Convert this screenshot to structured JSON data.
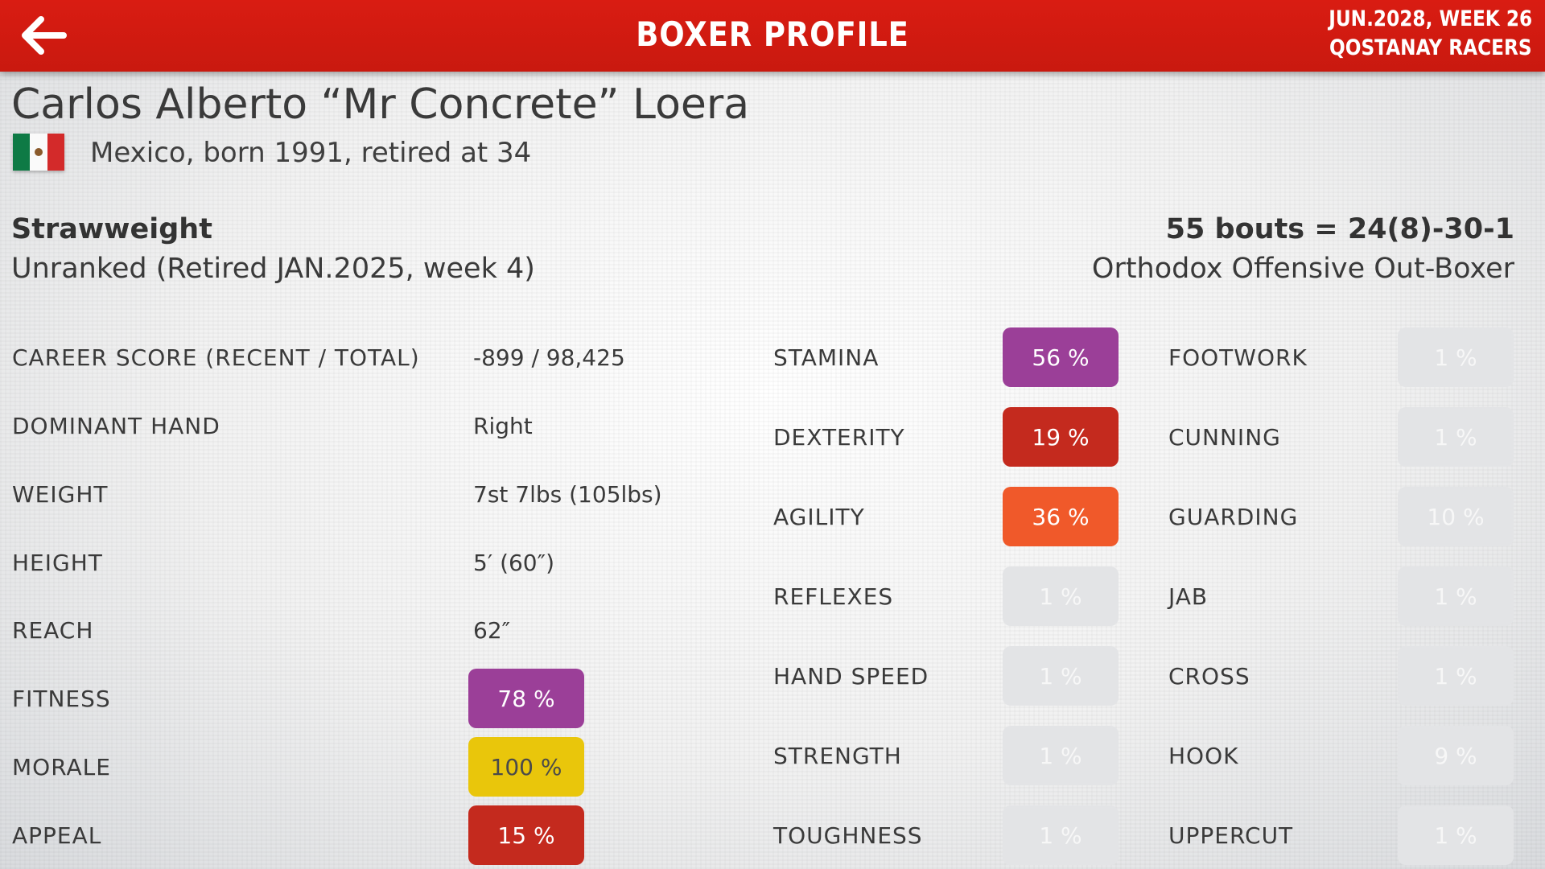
{
  "header": {
    "title": "BOXER PROFILE",
    "date": "JUN.2028, WEEK 26",
    "team": "QOSTANAY RACERS",
    "back_icon": "back-arrow-icon",
    "color": "#d91c12"
  },
  "boxer": {
    "name": "Carlos Alberto “Mr Concrete” Loera",
    "flag_icon": "mexico-flag-icon",
    "origin": "Mexico, born 1991, retired at 34",
    "weight_class": "Strawweight",
    "ranking": "Unranked (Retired JAN.2025, week 4)",
    "record": "55 bouts = 24(8)-30-1",
    "style": "Orthodox Offensive Out-Boxer"
  },
  "info": [
    {
      "label": "CAREER SCORE (RECENT / TOTAL)",
      "value": "-899 / 98,425"
    },
    {
      "label": "DOMINANT HAND",
      "value": "Right"
    },
    {
      "label": "WEIGHT",
      "value": "7st 7lbs (105lbs)"
    },
    {
      "label": "HEIGHT",
      "value": "5′ (60″)"
    },
    {
      "label": "REACH",
      "value": "62″"
    }
  ],
  "condition": [
    {
      "label": "FITNESS",
      "value": "78 %",
      "color": "#9b3f98"
    },
    {
      "label": "MORALE",
      "value": "100 %",
      "color": "#e9c60b"
    },
    {
      "label": "APPEAL",
      "value": "15 %",
      "color": "#c42a1e"
    }
  ],
  "physical": [
    {
      "label": "STAMINA",
      "value": "56 %",
      "color": "#9b3f98"
    },
    {
      "label": "DEXTERITY",
      "value": "19 %",
      "color": "#c42a1e"
    },
    {
      "label": "AGILITY",
      "value": "36 %",
      "color": "#f0592a"
    },
    {
      "label": "REFLEXES",
      "value": "1 %",
      "color": "#e3e4e6"
    },
    {
      "label": "HAND SPEED",
      "value": "1 %",
      "color": "#e3e4e6"
    },
    {
      "label": "STRENGTH",
      "value": "1 %",
      "color": "#e3e4e6"
    },
    {
      "label": "TOUGHNESS",
      "value": "1 %",
      "color": "#e3e4e6"
    }
  ],
  "skills": [
    {
      "label": "FOOTWORK",
      "value": "1 %",
      "color": "#e3e4e6"
    },
    {
      "label": "CUNNING",
      "value": "1 %",
      "color": "#e3e4e6"
    },
    {
      "label": "GUARDING",
      "value": "10 %",
      "color": "#e3e4e6"
    },
    {
      "label": "JAB",
      "value": "1 %",
      "color": "#e3e4e6"
    },
    {
      "label": "CROSS",
      "value": "1 %",
      "color": "#e3e4e6"
    },
    {
      "label": "HOOK",
      "value": "9 %",
      "color": "#e3e4e6"
    },
    {
      "label": "UPPERCUT",
      "value": "1 %",
      "color": "#e3e4e6"
    }
  ]
}
